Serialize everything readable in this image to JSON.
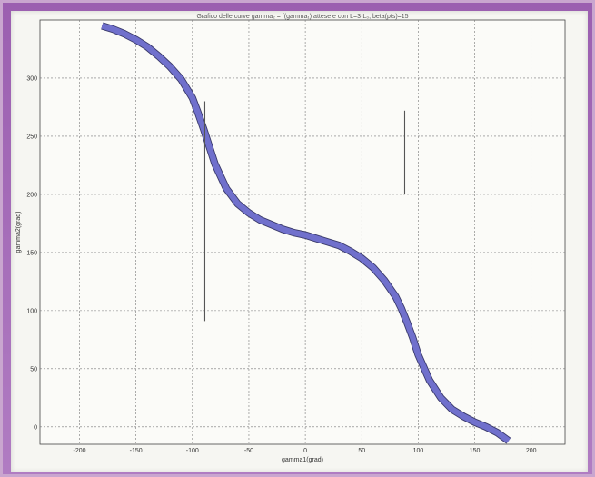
{
  "chart_data": {
    "type": "line",
    "title": "Grafico  delle curve gamma₂ = f(gamma₁) attese e con L=3·L₀, beta(pts)=15",
    "xlabel": "gamma1(grad)",
    "ylabel": "gamma2(grad)",
    "xlim": [
      -235,
      230
    ],
    "ylim": [
      -15,
      350
    ],
    "xticks": [
      -200,
      -150,
      -100,
      -50,
      0,
      50,
      100,
      150,
      200
    ],
    "yticks": [
      0,
      50,
      100,
      150,
      200,
      250,
      300
    ],
    "grid": true,
    "series": [
      {
        "color": "#7070cc",
        "x": [
          -180,
          -170,
          -160,
          -150,
          -140,
          -130,
          -120,
          -110,
          -100,
          -95,
          -90,
          -85,
          -80,
          -70,
          -60,
          -50,
          -40,
          -30,
          -20,
          -10,
          0,
          10,
          20,
          30,
          40,
          50,
          60,
          70,
          80,
          85,
          90,
          95,
          100,
          110,
          120,
          130,
          140,
          150,
          160,
          170,
          180
        ],
        "y": [
          345,
          342,
          338,
          333,
          327,
          319,
          310,
          299,
          283,
          270,
          256,
          241,
          226,
          205,
          192,
          184,
          178,
          174,
          170,
          167,
          165,
          162,
          159,
          156,
          151,
          145,
          137,
          126,
          112,
          102,
          90,
          77,
          62,
          40,
          25,
          15,
          9,
          4,
          0,
          -5,
          -12
        ]
      }
    ],
    "spikes": [
      {
        "x": -89,
        "y": [
          91,
          280
        ]
      },
      {
        "x": 88,
        "y": [
          200,
          272
        ]
      }
    ]
  }
}
